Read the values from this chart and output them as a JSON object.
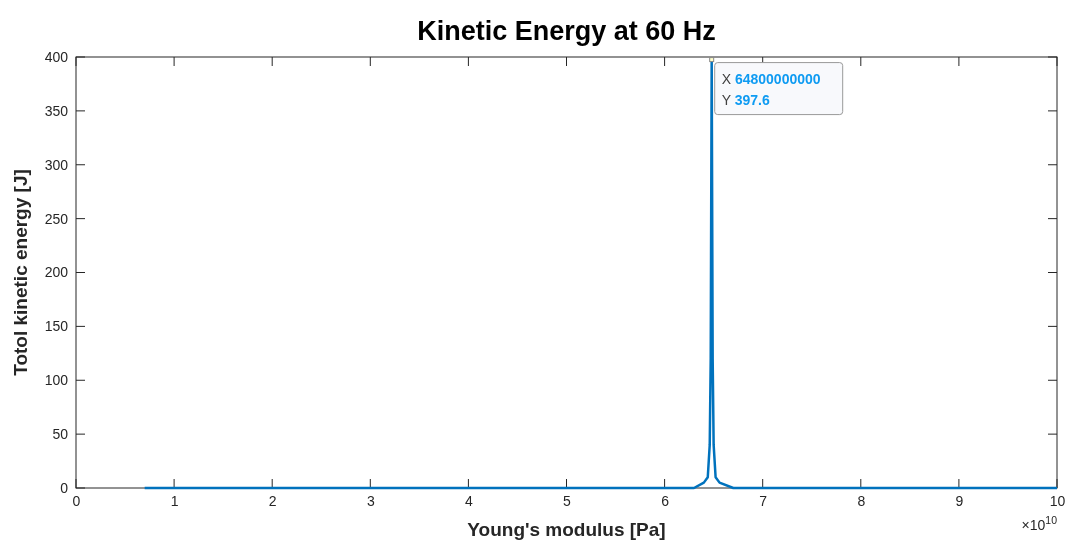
{
  "chart_data": {
    "type": "line",
    "title": "Kinetic Energy at 60 Hz",
    "xlabel": "Young's modulus [Pa]",
    "ylabel": "Totol kinetic energy [J]",
    "xlim": [
      0,
      10
    ],
    "ylim": [
      0,
      400
    ],
    "xticks": [
      0,
      1,
      2,
      3,
      4,
      5,
      6,
      7,
      8,
      9,
      10
    ],
    "yticks": [
      0,
      50,
      100,
      150,
      200,
      250,
      300,
      350,
      400
    ],
    "grid": false,
    "annotations": [
      "×10$^{10}$",
      {
        "text": "X 64800000000\nY 397.6",
        "x": 6.48,
        "y": 397.6
      }
    ],
    "series": [
      {
        "color": "#0072bd",
        "x": [
          0.7,
          2,
          4,
          6,
          6.3,
          6.4,
          6.44,
          6.46,
          6.47,
          6.48,
          6.49,
          6.5,
          6.52,
          6.56,
          6.7,
          8,
          10
        ],
        "values": [
          0,
          0,
          0,
          0,
          0,
          5,
          10,
          40,
          120,
          397.6,
          120,
          40,
          10,
          5,
          0,
          0,
          0
        ]
      }
    ]
  }
}
